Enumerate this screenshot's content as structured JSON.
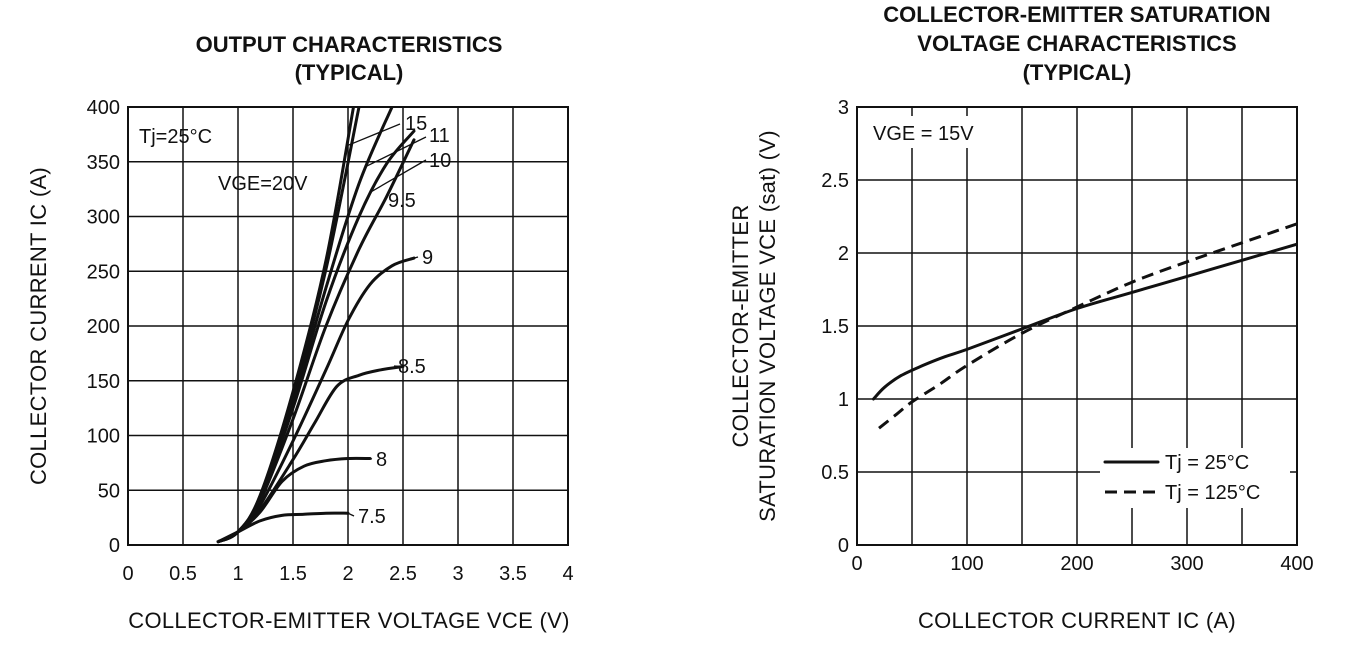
{
  "chart_data": [
    {
      "type": "line",
      "title": [
        "OUTPUT CHARACTERISTICS",
        "(TYPICAL)"
      ],
      "xlabel": "COLLECTOR-EMITTER VOLTAGE  VCE (V)",
      "ylabel": "COLLECTOR CURRENT  IC (A)",
      "xlim": [
        0,
        4
      ],
      "ylim": [
        0,
        400
      ],
      "xticks": [
        "0",
        "0.5",
        "1",
        "1.5",
        "2",
        "2.5",
        "3",
        "3.5",
        "4"
      ],
      "yticks": [
        "0",
        "50",
        "100",
        "150",
        "200",
        "250",
        "300",
        "350",
        "400"
      ],
      "grid": true,
      "annotations": [
        "Tj=25°C",
        "VGE=20V"
      ],
      "series": [
        {
          "name": "VGE=20V",
          "points": [
            [
              0.82,
              3
            ],
            [
              1.0,
              12
            ],
            [
              1.2,
              45
            ],
            [
              1.5,
              140
            ],
            [
              1.8,
              260
            ],
            [
              2.05,
              400
            ]
          ]
        },
        {
          "name": "15",
          "points": [
            [
              0.82,
              3
            ],
            [
              1.0,
              12
            ],
            [
              1.2,
              44
            ],
            [
              1.5,
              136
            ],
            [
              1.8,
              252
            ],
            [
              2.1,
              400
            ]
          ]
        },
        {
          "name": "11",
          "points": [
            [
              0.82,
              3
            ],
            [
              1.0,
              12
            ],
            [
              1.2,
              43
            ],
            [
              1.5,
              130
            ],
            [
              1.8,
              235
            ],
            [
              2.1,
              330
            ],
            [
              2.4,
              400
            ]
          ]
        },
        {
          "name": "10",
          "points": [
            [
              0.82,
              3
            ],
            [
              1.0,
              12
            ],
            [
              1.2,
              42
            ],
            [
              1.5,
              125
            ],
            [
              1.8,
              222
            ],
            [
              2.1,
              300
            ],
            [
              2.35,
              348
            ],
            [
              2.6,
              378
            ]
          ]
        },
        {
          "name": "9.5",
          "points": [
            [
              0.82,
              3
            ],
            [
              1.0,
              12
            ],
            [
              1.2,
              40
            ],
            [
              1.5,
              115
            ],
            [
              1.8,
              200
            ],
            [
              2.1,
              270
            ],
            [
              2.35,
              318
            ],
            [
              2.6,
              370
            ]
          ]
        },
        {
          "name": "9",
          "points": [
            [
              0.82,
              3
            ],
            [
              1.0,
              12
            ],
            [
              1.2,
              36
            ],
            [
              1.5,
              95
            ],
            [
              1.8,
              160
            ],
            [
              2.0,
              205
            ],
            [
              2.2,
              238
            ],
            [
              2.4,
              255
            ],
            [
              2.6,
              262
            ]
          ]
        },
        {
          "name": "8.5",
          "points": [
            [
              0.82,
              3
            ],
            [
              1.0,
              12
            ],
            [
              1.2,
              32
            ],
            [
              1.5,
              78
            ],
            [
              1.7,
              112
            ],
            [
              1.9,
              145
            ],
            [
              2.1,
              155
            ],
            [
              2.3,
              160
            ],
            [
              2.5,
              163
            ]
          ]
        },
        {
          "name": "8",
          "points": [
            [
              0.82,
              3
            ],
            [
              1.0,
              12
            ],
            [
              1.2,
              30
            ],
            [
              1.4,
              58
            ],
            [
              1.6,
              72
            ],
            [
              1.8,
              77
            ],
            [
              2.0,
              79
            ],
            [
              2.2,
              79
            ]
          ]
        },
        {
          "name": "7.5",
          "points": [
            [
              0.82,
              3
            ],
            [
              1.0,
              12
            ],
            [
              1.2,
              22
            ],
            [
              1.4,
              27
            ],
            [
              1.6,
              28
            ],
            [
              1.8,
              29
            ],
            [
              2.0,
              29
            ]
          ]
        }
      ]
    },
    {
      "type": "line",
      "title": [
        "COLLECTOR-EMITTER SATURATION",
        "VOLTAGE CHARACTERISTICS",
        "(TYPICAL)"
      ],
      "xlabel": "COLLECTOR CURRENT  IC (A)",
      "ylabel": [
        "COLLECTOR-EMITTER",
        "SATURATION VOLTAGE  VCE (sat) (V)"
      ],
      "xlim": [
        0,
        400
      ],
      "ylim": [
        0,
        3
      ],
      "xticks": [
        "0",
        "100",
        "200",
        "300",
        "400"
      ],
      "yticks": [
        "0",
        "0.5",
        "1",
        "1.5",
        "2",
        "2.5",
        "3"
      ],
      "grid": true,
      "annotations": [
        "VGE = 15V"
      ],
      "series": [
        {
          "name": "Tj = 25°C",
          "style": "solid",
          "points": [
            [
              15,
              1.0
            ],
            [
              25,
              1.08
            ],
            [
              40,
              1.16
            ],
            [
              60,
              1.23
            ],
            [
              80,
              1.29
            ],
            [
              100,
              1.34
            ],
            [
              150,
              1.48
            ],
            [
              200,
              1.62
            ],
            [
              250,
              1.73
            ],
            [
              300,
              1.84
            ],
            [
              350,
              1.95
            ],
            [
              400,
              2.06
            ]
          ]
        },
        {
          "name": "Tj = 125°C",
          "style": "dashed",
          "points": [
            [
              20,
              0.8
            ],
            [
              35,
              0.89
            ],
            [
              50,
              0.98
            ],
            [
              75,
              1.1
            ],
            [
              100,
              1.23
            ],
            [
              150,
              1.45
            ],
            [
              200,
              1.63
            ],
            [
              250,
              1.8
            ],
            [
              300,
              1.94
            ],
            [
              350,
              2.07
            ],
            [
              400,
              2.2
            ]
          ]
        }
      ]
    }
  ]
}
